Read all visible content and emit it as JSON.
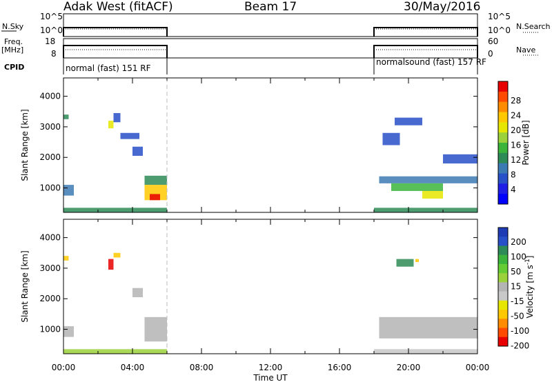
{
  "header": {
    "radar": "Adak West (fitACF)",
    "beam": "Beam 17",
    "date": "30/May/2016"
  },
  "status_panels": {
    "nsky_label": "N.Sky",
    "nsky_ticks": [
      "10^5",
      "10^0"
    ],
    "nsearch_label": "N.Search",
    "nsearch_ticks": [
      "10^5",
      "10^0"
    ],
    "freq_label_1": "Freq.",
    "freq_label_2": "[MHz]",
    "freq_ticks": [
      "18",
      "8"
    ],
    "nave_label": "Nave",
    "nave_ticks": [
      "60",
      "0"
    ],
    "cpid_label": "CPID",
    "cpid_segments": [
      {
        "label": "normal (fast) 151 RF",
        "start": 0,
        "end": 6
      },
      {
        "label": "normalsound (fast) 157 RF",
        "start": 18,
        "end": 24
      }
    ]
  },
  "x_axis": {
    "label": "Time UT",
    "ticks": [
      "00:00",
      "04:00",
      "08:00",
      "12:00",
      "16:00",
      "20:00",
      "00:00"
    ]
  },
  "power_colorbar": {
    "title": "Power [dB]",
    "ticks": [
      "28",
      "24",
      "20",
      "16",
      "12",
      "8",
      "4"
    ],
    "colors": [
      "#e80000",
      "#ff4a00",
      "#ff8c00",
      "#ffc800",
      "#e6e600",
      "#9bd23c",
      "#3cb43c",
      "#2e8b57",
      "#3c7ab4",
      "#2850c8",
      "#1e1ee6",
      "#0000ff"
    ]
  },
  "velocity_colorbar": {
    "title_main": "Velocity [m s",
    "title_sup": "-1",
    "title_end": "]",
    "ticks": [
      "200",
      "100",
      "50",
      "15",
      "-15",
      "-50",
      "-100",
      "-200"
    ],
    "colors": [
      "#1e3cb4",
      "#2850c8",
      "#2e8b57",
      "#3cb43c",
      "#66cc33",
      "#9bd23c",
      "#b4b4b4",
      "#c8c8c8",
      "#e6e600",
      "#ffc800",
      "#ff8c00",
      "#ff4a00",
      "#e80000"
    ]
  },
  "chart_data": [
    {
      "type": "heatmap",
      "title": "",
      "quantity": "Power",
      "xlabel": "Time UT",
      "ylabel": "Slant Range [km]",
      "xlim": [
        0,
        24
      ],
      "ylim": [
        200,
        4600
      ],
      "yticks": [
        "4000",
        "3000",
        "2000",
        "1000"
      ],
      "units": "dB",
      "scale": [
        0,
        30
      ],
      "regions": [
        {
          "t": [
            0.0,
            6.0
          ],
          "r": [
            200,
            350
          ],
          "value": 12
        },
        {
          "t": [
            0.0,
            0.6
          ],
          "r": [
            750,
            1100
          ],
          "value": 8
        },
        {
          "t": [
            0.0,
            0.3
          ],
          "r": [
            3250,
            3400
          ],
          "value": 12
        },
        {
          "t": [
            2.6,
            2.9
          ],
          "r": [
            2950,
            3200
          ],
          "value": 20
        },
        {
          "t": [
            2.9,
            3.3
          ],
          "r": [
            3150,
            3450
          ],
          "value": 6
        },
        {
          "t": [
            3.3,
            4.4
          ],
          "r": [
            2600,
            2800
          ],
          "value": 6
        },
        {
          "t": [
            4.0,
            4.6
          ],
          "r": [
            2050,
            2350
          ],
          "value": 6
        },
        {
          "t": [
            4.7,
            6.0
          ],
          "r": [
            1100,
            1400
          ],
          "value": 12
        },
        {
          "t": [
            4.7,
            6.0
          ],
          "r": [
            600,
            1100
          ],
          "value": 22
        },
        {
          "t": [
            5.0,
            5.6
          ],
          "r": [
            600,
            800
          ],
          "value": 28
        },
        {
          "t": [
            18.0,
            24.0
          ],
          "r": [
            200,
            350
          ],
          "value": 12
        },
        {
          "t": [
            18.3,
            24.0
          ],
          "r": [
            1150,
            1380
          ],
          "value": 8
        },
        {
          "t": [
            19.0,
            22.0
          ],
          "r": [
            900,
            1150
          ],
          "value": 14
        },
        {
          "t": [
            20.8,
            22.0
          ],
          "r": [
            650,
            900
          ],
          "value": 18
        },
        {
          "t": [
            19.2,
            20.8
          ],
          "r": [
            3050,
            3300
          ],
          "value": 6
        },
        {
          "t": [
            18.5,
            19.5
          ],
          "r": [
            2400,
            2800
          ],
          "value": 6
        },
        {
          "t": [
            22.0,
            24.0
          ],
          "r": [
            1800,
            2100
          ],
          "value": 6
        }
      ]
    },
    {
      "type": "heatmap",
      "title": "",
      "quantity": "Velocity",
      "xlabel": "Time UT",
      "ylabel": "Slant Range [km]",
      "xlim": [
        0,
        24
      ],
      "ylim": [
        200,
        4600
      ],
      "yticks": [
        "4000",
        "3000",
        "2000",
        "1000"
      ],
      "units": "m s^-1",
      "scale": [
        -250,
        250
      ],
      "regions": [
        {
          "t": [
            0.0,
            6.0
          ],
          "r": [
            200,
            350
          ],
          "value": 40
        },
        {
          "t": [
            0.0,
            0.6
          ],
          "r": [
            750,
            1100
          ],
          "value": 0
        },
        {
          "t": [
            0.0,
            0.3
          ],
          "r": [
            3250,
            3400
          ],
          "value": -120
        },
        {
          "t": [
            2.6,
            2.9
          ],
          "r": [
            2950,
            3300
          ],
          "value": -230
        },
        {
          "t": [
            2.9,
            3.3
          ],
          "r": [
            3350,
            3500
          ],
          "value": -120
        },
        {
          "t": [
            4.0,
            4.6
          ],
          "r": [
            2050,
            2350
          ],
          "value": 0
        },
        {
          "t": [
            4.7,
            6.0
          ],
          "r": [
            600,
            1400
          ],
          "value": 0
        },
        {
          "t": [
            18.0,
            24.0
          ],
          "r": [
            200,
            350
          ],
          "value": -40
        },
        {
          "t": [
            18.3,
            24.0
          ],
          "r": [
            700,
            1400
          ],
          "value": 0
        },
        {
          "t": [
            19.3,
            20.3
          ],
          "r": [
            3050,
            3300
          ],
          "value": 150
        },
        {
          "t": [
            20.4,
            20.6
          ],
          "r": [
            3200,
            3300
          ],
          "value": -120
        }
      ]
    }
  ]
}
